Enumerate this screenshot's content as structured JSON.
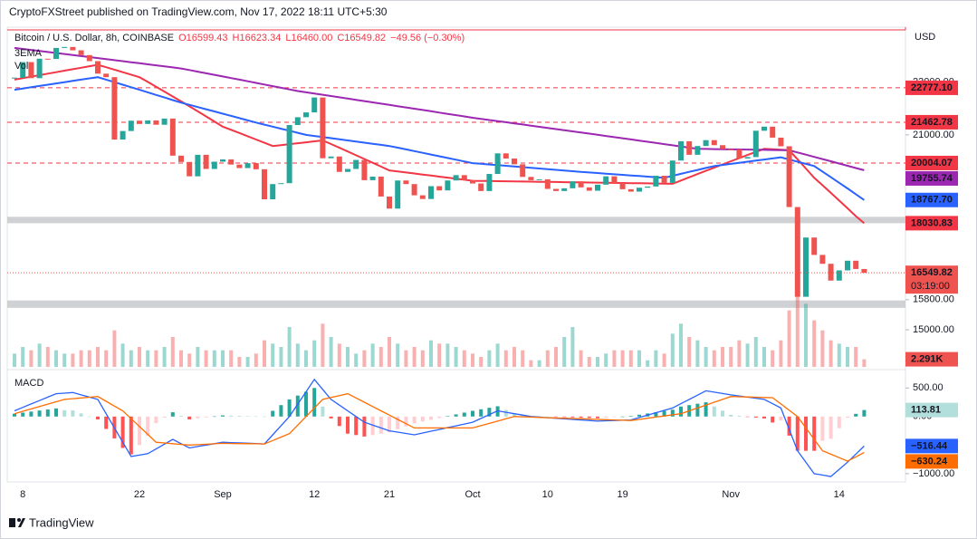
{
  "header": "CryptoFXStreet published on TradingView.com, Nov 17, 2022 18:11 UTC+5:30",
  "footer": "TradingView",
  "chart_data": [
    {
      "type": "candle",
      "title": "Bitcoin / U.S. Dollar, 8h, COINBASE",
      "ohlc": [
        "O16599.43",
        "H16623.34",
        "L16460.00",
        "C16549.82",
        "−49.56 (−0.30%)"
      ],
      "indicators": [
        "3EMA",
        "Vol"
      ],
      "currency": "USD",
      "categories": [
        null,
        "8",
        null,
        null,
        null,
        null,
        null,
        null,
        null,
        null,
        null,
        null,
        null,
        null,
        null,
        "22",
        null,
        null,
        null,
        null,
        null,
        null,
        null,
        null,
        null,
        "Sep",
        null,
        null,
        null,
        null,
        null,
        null,
        null,
        null,
        null,
        null,
        "12",
        null,
        null,
        null,
        null,
        null,
        null,
        null,
        null,
        "21",
        null,
        null,
        null,
        null,
        null,
        null,
        null,
        null,
        null,
        "Oct",
        null,
        null,
        null,
        null,
        null,
        null,
        null,
        null,
        "10",
        null,
        null,
        null,
        null,
        null,
        null,
        null,
        null,
        "19",
        null,
        null,
        null,
        null,
        null,
        null,
        null,
        null,
        null,
        null,
        null,
        null,
        "Nov",
        null,
        null,
        null,
        null,
        null,
        null,
        null,
        null,
        null,
        null,
        null,
        null,
        "14",
        null,
        null,
        null
      ],
      "log_scale": true,
      "ylim": [
        14070,
        25290
      ],
      "yticks": [
        {
          "value": 15000,
          "label": "15000.00"
        },
        {
          "value": 15800,
          "label": "15800.00"
        },
        {
          "value": 21000,
          "label": "21000.00"
        },
        {
          "value": 23000,
          "label": "23000.00"
        }
      ],
      "close": {
        "color_up": "#26a69a",
        "color_down": "#ef5350",
        "last_label": "16549.82",
        "countdown": "03:19:00",
        "values": [
          23180,
          23810,
          23160,
          23950,
          23940,
          24400,
          24440,
          24300,
          24100,
          23850,
          23340,
          23200,
          20830,
          21140,
          21520,
          21400,
          21530,
          21370,
          21600,
          20260,
          20040,
          19550,
          20290,
          19800,
          20050,
          20130,
          19950,
          19830,
          20000,
          19790,
          18790,
          19290,
          19320,
          21360,
          21650,
          21830,
          22400,
          20170,
          20230,
          19700,
          19800,
          20110,
          19420,
          19540,
          18880,
          18490,
          19410,
          19290,
          18920,
          18800,
          19220,
          19080,
          19410,
          19590,
          19420,
          19310,
          19060,
          19630,
          20340,
          20160,
          19960,
          19530,
          19420,
          19450,
          19130,
          19060,
          19150,
          19380,
          19180,
          19070,
          19270,
          19550,
          19330,
          19120,
          19040,
          19170,
          19210,
          19570,
          19330,
          20090,
          20770,
          20290,
          20600,
          20810,
          20630,
          20490,
          20480,
          20160,
          20210,
          21150,
          21300,
          20900,
          20590,
          18540,
          15880,
          17590,
          17070,
          16810,
          16330,
          16620,
          16900,
          16660,
          16549.82
        ]
      },
      "ema": [
        {
          "color": "#f23645",
          "last_label": "18030.83",
          "values": [
            23100,
            23160,
            23220,
            23280,
            23340,
            23400,
            23460,
            23520,
            23580,
            23640,
            23700,
            23600,
            23500,
            23400,
            23300,
            23200,
            23010,
            22820,
            22630,
            22440,
            22250,
            22060,
            21870,
            21680,
            21490,
            21300,
            21183,
            21067,
            20950,
            20833,
            20717,
            20600,
            20633,
            20667,
            20700,
            20733,
            20767,
            20800,
            20669,
            20538,
            20406,
            20275,
            20144,
            20013,
            19881,
            19750,
            19715,
            19680,
            19645,
            19610,
            19575,
            19540,
            19505,
            19470,
            19435,
            19400,
            19396,
            19392,
            19388,
            19383,
            19379,
            19375,
            19371,
            19367,
            19363,
            19358,
            19354,
            19350,
            19346,
            19342,
            19338,
            19333,
            19329,
            19325,
            19321,
            19317,
            19313,
            19308,
            19304,
            19300,
            19409,
            19518,
            19627,
            19736,
            19845,
            19955,
            20064,
            20173,
            20282,
            20391,
            20500,
            20483,
            20467,
            20450,
            20133,
            19817,
            19500,
            19250,
            19000,
            18750,
            18500,
            18250,
            18030.83
          ]
        },
        {
          "color": "#2962ff",
          "last_label": "18767.70",
          "values": [
            22700,
            22750,
            22800,
            22850,
            22900,
            22950,
            23000,
            23050,
            23100,
            23150,
            23200,
            23100,
            23000,
            22900,
            22800,
            22700,
            22600,
            22500,
            22400,
            22300,
            22200,
            22117,
            22033,
            21950,
            21867,
            21783,
            21700,
            21617,
            21533,
            21450,
            21375,
            21300,
            21225,
            21150,
            21075,
            21000,
            20960,
            20920,
            20880,
            20840,
            20800,
            20760,
            20720,
            20680,
            20640,
            20600,
            20540,
            20480,
            20420,
            20360,
            20300,
            20240,
            20180,
            20120,
            20060,
            20000,
            19977,
            19954,
            19931,
            19908,
            19885,
            19862,
            19838,
            19815,
            19792,
            19769,
            19746,
            19723,
            19700,
            19680,
            19660,
            19640,
            19620,
            19600,
            19580,
            19560,
            19540,
            19520,
            19500,
            19567,
            19633,
            19700,
            19767,
            19833,
            19900,
            19938,
            19975,
            20013,
            20050,
            20088,
            20125,
            20163,
            20200,
            20125,
            20050,
            19975,
            19900,
            19711,
            19522,
            19333,
            19145,
            18956,
            18767.7
          ]
        },
        {
          "color": "#9c27b0",
          "last_label": "19755.74",
          "values": [
            24400,
            24358,
            24315,
            24273,
            24230,
            24188,
            24145,
            24103,
            24060,
            24018,
            23975,
            23933,
            23890,
            23848,
            23805,
            23763,
            23720,
            23678,
            23635,
            23593,
            23550,
            23486,
            23421,
            23357,
            23293,
            23229,
            23164,
            23100,
            23036,
            22971,
            22907,
            22843,
            22779,
            22714,
            22650,
            22601,
            22553,
            22504,
            22456,
            22407,
            22359,
            22310,
            22261,
            22213,
            22164,
            22116,
            22067,
            22019,
            21970,
            21921,
            21873,
            21824,
            21776,
            21727,
            21679,
            21630,
            21588,
            21546,
            21504,
            21463,
            21421,
            21379,
            21337,
            21295,
            21253,
            21211,
            21170,
            21128,
            21086,
            21044,
            21002,
            20960,
            20918,
            20877,
            20835,
            20793,
            20751,
            20709,
            20667,
            20626,
            20584,
            20542,
            20500,
            20495,
            20491,
            20486,
            20482,
            20477,
            20473,
            20468,
            20464,
            20459,
            20455,
            20450,
            20373,
            20296,
            20218,
            20141,
            20064,
            19987,
            19910,
            19832,
            19755.74
          ]
        }
      ],
      "levels_color": "#f23645",
      "levels": [
        {
          "value": 22777.1,
          "label": "22777.10"
        },
        {
          "value": 21462.78,
          "label": "21462.78"
        },
        {
          "value": 20004.07,
          "label": "20004.07"
        }
      ],
      "zones_color": "#c8c9cc",
      "zones": [
        [
          18030,
          18230
        ],
        [
          15580,
          15780
        ]
      ],
      "volume": {
        "axis": "y2",
        "last_label": "2.291K",
        "values": [
          4,
          6,
          5,
          7,
          6,
          5,
          4,
          4,
          5,
          5,
          6,
          5,
          11,
          7,
          5,
          6,
          5,
          5,
          6,
          9,
          5,
          4,
          6,
          5,
          5,
          5,
          5,
          3,
          3,
          4,
          8,
          7,
          6,
          12,
          7,
          5,
          8,
          13,
          9,
          7,
          6,
          4,
          5,
          7,
          6,
          9,
          7,
          5,
          6,
          5,
          8,
          7,
          7,
          6,
          5,
          4,
          3,
          5,
          7,
          5,
          6,
          5,
          2,
          2,
          5,
          6,
          9,
          12,
          5,
          3,
          3,
          4,
          5,
          5,
          5,
          5,
          2,
          5,
          4,
          10,
          13,
          9,
          8,
          6,
          5,
          6,
          6,
          8,
          7,
          9,
          6,
          5,
          8,
          17,
          22,
          19,
          14,
          11,
          8,
          7,
          6,
          6,
          2.291
        ]
      },
      "y2lim": [
        0,
        30
      ]
    },
    {
      "type": "macd",
      "title": "MACD",
      "ylim": [
        -1145,
        790
      ],
      "yticks": [
        {
          "value": 500,
          "label": "500.00"
        },
        {
          "value": 0,
          "label": "0.00"
        },
        {
          "value": -1000,
          "label": "−1000.00"
        }
      ],
      "macd": {
        "color": "#2962ff",
        "last_label": "−516.44",
        "values": [
          100,
          160,
          220,
          280,
          340,
          400,
          410,
          420,
          380,
          340,
          300,
          50,
          -200,
          -450,
          -700,
          -675,
          -650,
          -567,
          -483,
          -400,
          -475,
          -550,
          -525,
          -500,
          -475,
          -450,
          -456,
          -462,
          -468,
          -474,
          -480,
          -320,
          -160,
          0,
          217,
          433,
          650,
          475,
          300,
          200,
          100,
          0,
          -100,
          -150,
          -200,
          -250,
          -273,
          -297,
          -320,
          -289,
          -257,
          -226,
          -194,
          -163,
          -131,
          -100,
          -33,
          33,
          100,
          75,
          50,
          25,
          0,
          -10,
          -20,
          -30,
          -40,
          -50,
          -60,
          -70,
          -80,
          -75,
          -70,
          -65,
          -60,
          -18,
          24,
          66,
          108,
          150,
          225,
          300,
          375,
          450,
          427,
          403,
          380,
          360,
          340,
          320,
          300,
          225,
          150,
          -225,
          -600,
          -800,
          -1000,
          -1025,
          -1050,
          -925,
          -800,
          -658,
          -516.44
        ]
      },
      "signal": {
        "color": "#ff6d00",
        "last_label": "−630.24",
        "values": [
          50,
          92,
          133,
          175,
          217,
          258,
          300,
          313,
          325,
          338,
          350,
          267,
          183,
          100,
          -38,
          -175,
          -313,
          -450,
          -463,
          -475,
          -488,
          -500,
          -493,
          -485,
          -478,
          -470,
          -472,
          -474,
          -476,
          -478,
          -480,
          -420,
          -360,
          -300,
          -150,
          0,
          150,
          300,
          333,
          367,
          400,
          325,
          250,
          175,
          100,
          25,
          -50,
          -125,
          -200,
          -200,
          -200,
          -200,
          -200,
          -200,
          -200,
          -200,
          -160,
          -120,
          -80,
          -40,
          0,
          -5,
          -10,
          -15,
          -20,
          -25,
          -30,
          -35,
          -40,
          -45,
          -50,
          -55,
          -60,
          -65,
          -70,
          -50,
          -30,
          -10,
          10,
          30,
          50,
          100,
          150,
          200,
          250,
          300,
          350,
          346,
          342,
          338,
          334,
          330,
          220,
          110,
          0,
          -200,
          -400,
          -600,
          -660,
          -720,
          -780,
          -705,
          -630.24
        ]
      },
      "histogram": {
        "colors": [
          "#26a69a",
          "#b2dfdb",
          "#ff5252",
          "#ffcdd2"
        ],
        "last_label": "113.81",
        "values": [
          50,
          68,
          87,
          105,
          123,
          142,
          110,
          107,
          55,
          2,
          -50,
          -217,
          -383,
          -550,
          -662,
          -500,
          -337,
          -117,
          -20,
          75,
          13,
          -50,
          -32,
          -15,
          3,
          20,
          16,
          12,
          8,
          4,
          0,
          100,
          200,
          300,
          367,
          433,
          500,
          175,
          -33,
          -167,
          -300,
          -325,
          -350,
          -325,
          -300,
          -275,
          -223,
          -172,
          -120,
          -89,
          -57,
          -26,
          6,
          37,
          69,
          100,
          127,
          153,
          180,
          115,
          50,
          30,
          10,
          5,
          0,
          -5,
          -10,
          -15,
          -20,
          -25,
          -30,
          -20,
          -10,
          0,
          10,
          32,
          54,
          76,
          98,
          120,
          175,
          200,
          225,
          250,
          177,
          103,
          30,
          14,
          -2,
          -18,
          -34,
          -105,
          -70,
          -335,
          -600,
          -600,
          -600,
          -425,
          -390,
          -205,
          -20,
          47,
          113.81
        ]
      }
    }
  ]
}
